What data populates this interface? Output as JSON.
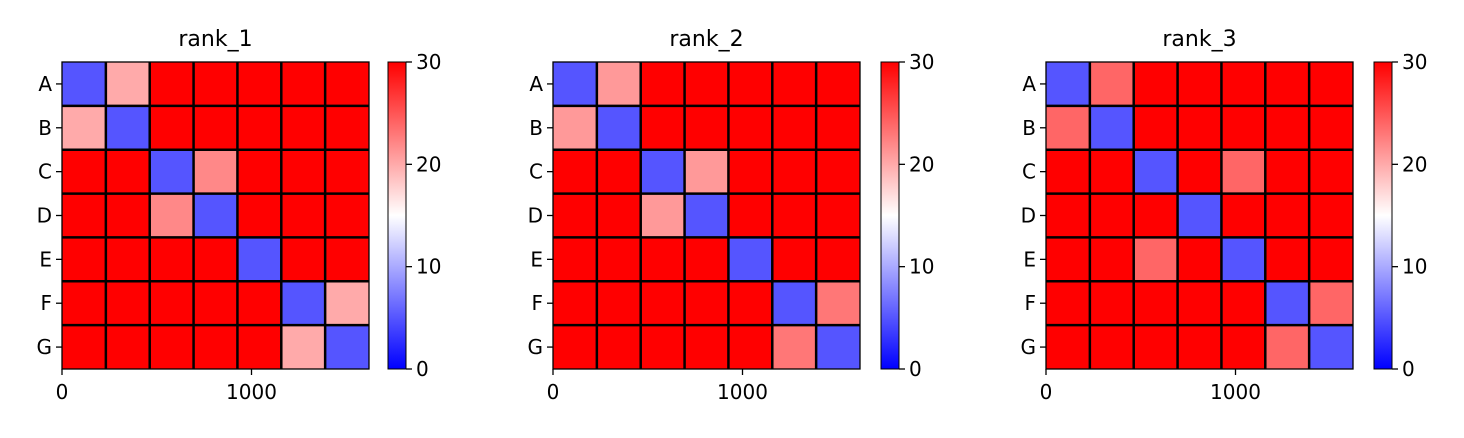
{
  "figure": {
    "title": "",
    "colormap": {
      "name": "bwr",
      "low": "#0000ff",
      "mid": "#ffffff",
      "high": "#ff0000"
    }
  },
  "chart_data": [
    {
      "type": "heatmap",
      "title": "rank_1",
      "row_labels": [
        "A",
        "B",
        "C",
        "D",
        "E",
        "F",
        "G"
      ],
      "xlim": [
        0,
        1620
      ],
      "xticks": [
        0,
        1000
      ],
      "colorbar": {
        "vmin": 0,
        "vmax": 30,
        "ticks": [
          0,
          10,
          20,
          30
        ]
      },
      "block_values": [
        [
          5,
          20,
          30,
          30,
          30,
          30,
          30
        ],
        [
          20,
          5,
          30,
          30,
          30,
          30,
          30
        ],
        [
          30,
          30,
          5,
          22,
          30,
          30,
          30
        ],
        [
          30,
          30,
          22,
          5,
          30,
          30,
          30
        ],
        [
          30,
          30,
          30,
          30,
          5,
          30,
          30
        ],
        [
          30,
          30,
          30,
          30,
          30,
          5,
          20
        ],
        [
          30,
          30,
          30,
          30,
          30,
          20,
          5
        ]
      ]
    },
    {
      "type": "heatmap",
      "title": "rank_2",
      "row_labels": [
        "A",
        "B",
        "C",
        "D",
        "E",
        "F",
        "G"
      ],
      "xlim": [
        0,
        1620
      ],
      "xticks": [
        0,
        1000
      ],
      "colorbar": {
        "vmin": 0,
        "vmax": 30,
        "ticks": [
          0,
          10,
          20,
          30
        ]
      },
      "block_values": [
        [
          5,
          21,
          30,
          30,
          30,
          30,
          30
        ],
        [
          21,
          5,
          30,
          30,
          30,
          30,
          30
        ],
        [
          30,
          30,
          5,
          21,
          30,
          30,
          30
        ],
        [
          30,
          30,
          21,
          5,
          30,
          30,
          30
        ],
        [
          30,
          30,
          30,
          30,
          5,
          30,
          30
        ],
        [
          30,
          30,
          30,
          30,
          30,
          5,
          23
        ],
        [
          30,
          30,
          30,
          30,
          30,
          23,
          5
        ]
      ]
    },
    {
      "type": "heatmap",
      "title": "rank_3",
      "row_labels": [
        "A",
        "B",
        "C",
        "D",
        "E",
        "F",
        "G"
      ],
      "xlim": [
        0,
        1620
      ],
      "xticks": [
        0,
        1000
      ],
      "colorbar": {
        "vmin": 0,
        "vmax": 30,
        "ticks": [
          0,
          10,
          20,
          30
        ]
      },
      "block_values": [
        [
          5,
          24,
          30,
          30,
          30,
          30,
          30
        ],
        [
          24,
          5,
          30,
          30,
          30,
          30,
          30
        ],
        [
          30,
          30,
          5,
          30,
          24,
          30,
          30
        ],
        [
          30,
          30,
          30,
          5,
          30,
          30,
          30
        ],
        [
          30,
          30,
          24,
          30,
          5,
          30,
          30
        ],
        [
          30,
          30,
          30,
          30,
          30,
          5,
          24
        ],
        [
          30,
          30,
          30,
          30,
          30,
          24,
          5
        ]
      ]
    }
  ]
}
